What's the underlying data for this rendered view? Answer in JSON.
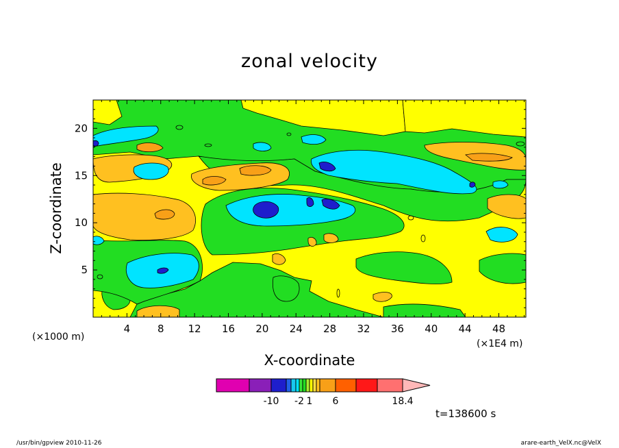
{
  "chart_data": {
    "type": "heatmap",
    "title": "zonal velocity",
    "xlabel": "X-coordinate",
    "ylabel": "Z-coordinate",
    "x_unit": "(×1000 m)",
    "x_unit_right": "(×1E4 m)",
    "x_ticks": [
      "4",
      "8",
      "12",
      "16",
      "20",
      "24",
      "28",
      "32",
      "36",
      "40",
      "44",
      "48"
    ],
    "x_tick_values": [
      4,
      8,
      12,
      16,
      20,
      24,
      28,
      32,
      36,
      40,
      44,
      48
    ],
    "y_ticks": [
      "5",
      "10",
      "15",
      "20"
    ],
    "y_tick_values": [
      5,
      10,
      15,
      20
    ],
    "xlim": [
      0,
      51.2
    ],
    "ylim": [
      0,
      23
    ],
    "colorbar": {
      "levels": [
        -16,
        -13,
        -10,
        -7,
        -5,
        -3,
        -2,
        -1,
        0,
        1,
        2,
        3,
        4,
        6,
        8,
        10,
        14,
        18.4
      ],
      "labels": [
        "-10",
        "-2",
        "1",
        "6",
        "18.4"
      ],
      "label_values": [
        -10,
        -2,
        1,
        6,
        18.4
      ],
      "colors": [
        "#e000b0",
        "#8a1fb8",
        "#1e1ecc",
        "#2060e8",
        "#18c8f0",
        "#00e4ff",
        "#38e838",
        "#22dd22",
        "#a8ee30",
        "#ffff00",
        "#ffe040",
        "#ffc020",
        "#f8a018",
        "#ff6000",
        "#ff1818",
        "#ff7070",
        "#ffb8b8",
        "#ffc8d8"
      ]
    },
    "time_label": "t=138600 s"
  },
  "footer": {
    "left": "/usr/bin/gpview   2010-11-26",
    "right": "arare-earth_VelX.nc@VelX"
  }
}
